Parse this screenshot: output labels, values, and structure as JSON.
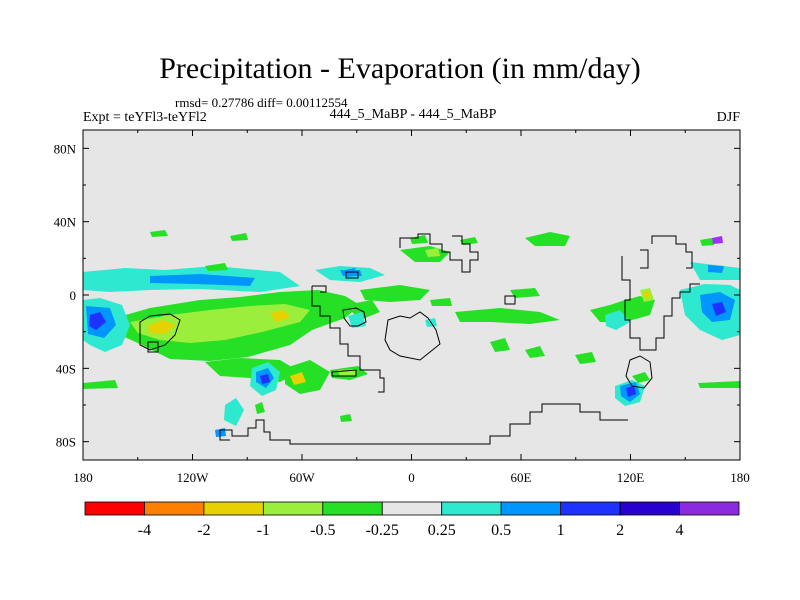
{
  "title": "Precipitation - Evaporation (in mm/day)",
  "stats": "rmsd= 0.27786 diff= 0.00112554",
  "expt_label": "Expt = teYFl3-teYFl2",
  "center_label": "444_5_MaBP - 444_5_MaBP",
  "season": "DJF",
  "map": {
    "lon_range": [
      -180,
      180
    ],
    "lat_range": [
      -90,
      90
    ],
    "background_color": "#e6e6e6",
    "y_ticks": [
      {
        "lat": 80,
        "label": "80N"
      },
      {
        "lat": 40,
        "label": "40N"
      },
      {
        "lat": 0,
        "label": "0"
      },
      {
        "lat": -40,
        "label": "40S"
      },
      {
        "lat": -80,
        "label": "80S"
      }
    ],
    "x_ticks": [
      {
        "lon": -180,
        "label": "180"
      },
      {
        "lon": -120,
        "label": "120W"
      },
      {
        "lon": -60,
        "label": "60W"
      },
      {
        "lon": 0,
        "label": "0"
      },
      {
        "lon": 60,
        "label": "60E"
      },
      {
        "lon": 120,
        "label": "120E"
      },
      {
        "lon": 180,
        "label": "180"
      }
    ]
  },
  "colorbar": {
    "colors": [
      "#ff0000",
      "#ff7f00",
      "#e6d200",
      "#9bef3c",
      "#26e026",
      "#e6e6e6",
      "#2ee8d0",
      "#0096ff",
      "#1e32ff",
      "#2800d0",
      "#8a2be2"
    ],
    "labels": [
      "-4",
      "-2",
      "-1",
      "-0.5",
      "-0.25",
      "0.25",
      "0.5",
      "1",
      "2",
      "4"
    ]
  },
  "palette": {
    "green": "#26e026",
    "light_green": "#9bef3c",
    "yellow": "#e6d200",
    "cyan": "#2ee8d0",
    "blue": "#0096ff",
    "dark_blue": "#1e32ff"
  }
}
